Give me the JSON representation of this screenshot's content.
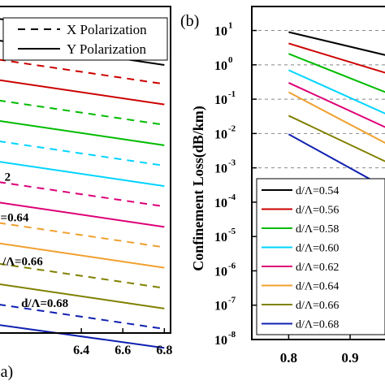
{
  "chart_data": [
    {
      "panel": "(a)",
      "type": "line",
      "title": "",
      "xlabel": "",
      "ylabel": "",
      "xlim": [
        6.0,
        6.83
      ],
      "ylim": [
        0,
        12
      ],
      "x_ticks": [
        6.4,
        6.6,
        6.8
      ],
      "x_tick_labels": [
        "6.4",
        "6.6",
        "6.8"
      ],
      "x": [
        6.0,
        6.8
      ],
      "legend": {
        "position": "top-right",
        "entries": [
          {
            "label": "X Polarization",
            "style": "dashed"
          },
          {
            "label": "Y Polarization",
            "style": "solid"
          }
        ]
      },
      "annotations": [
        {
          "text": "2",
          "x": 6.03,
          "y": 5.6
        },
        {
          "text": "=0.64",
          "x": 6.01,
          "y": 4.1
        },
        {
          "text": "/Λ=0.66",
          "x": 6.02,
          "y": 2.5
        },
        {
          "text": "d/Λ=0.68",
          "x": 6.11,
          "y": 0.95
        }
      ],
      "series": [
        {
          "color": "#000000",
          "style": "dashed",
          "values": [
            11.55,
            10.65
          ]
        },
        {
          "color": "#000000",
          "style": "solid",
          "values": [
            10.75,
            9.85
          ]
        },
        {
          "color": "#cc0000",
          "style": "dashed",
          "values": [
            10.05,
            9.15
          ]
        },
        {
          "color": "#cc0000",
          "style": "solid",
          "values": [
            9.3,
            8.4
          ]
        },
        {
          "color": "#00bb00",
          "style": "dashed",
          "values": [
            8.55,
            7.65
          ]
        },
        {
          "color": "#00bb00",
          "style": "solid",
          "values": [
            7.8,
            6.9
          ]
        },
        {
          "color": "#00d4ff",
          "style": "dashed",
          "values": [
            7.05,
            6.15
          ]
        },
        {
          "color": "#00d4ff",
          "style": "solid",
          "values": [
            6.3,
            5.4
          ]
        },
        {
          "color": "#dd0077",
          "style": "dashed",
          "values": [
            5.55,
            4.65
          ]
        },
        {
          "color": "#dd0077",
          "style": "solid",
          "values": [
            4.8,
            3.9
          ]
        },
        {
          "color": "#f0a030",
          "style": "dashed",
          "values": [
            4.05,
            3.15
          ]
        },
        {
          "color": "#f0a030",
          "style": "solid",
          "values": [
            3.3,
            2.4
          ]
        },
        {
          "color": "#808000",
          "style": "dashed",
          "values": [
            2.55,
            1.65
          ]
        },
        {
          "color": "#808000",
          "style": "solid",
          "values": [
            1.8,
            0.9
          ]
        },
        {
          "color": "#1020b0",
          "style": "dashed",
          "values": [
            1.05,
            0.15
          ]
        },
        {
          "color": "#1020b0",
          "style": "solid",
          "values": [
            0.3,
            -0.55
          ]
        }
      ]
    },
    {
      "panel": "(b)",
      "type": "line",
      "title": "",
      "xlabel": "",
      "ylabel": "Confinement Loss(dB/km)",
      "log_y": true,
      "xlim": [
        0.74,
        0.97
      ],
      "ylim": [
        1e-08,
        50
      ],
      "x_ticks": [
        0.8,
        0.9
      ],
      "x_tick_labels": [
        "0.8",
        "0.9"
      ],
      "y_tick_exponents": [
        1,
        0,
        -1,
        -2,
        -3,
        -4,
        -5,
        -6,
        -7,
        -8
      ],
      "y_tick_labels": [
        "10",
        "10",
        "10",
        "10",
        "10",
        "10",
        "10",
        "10",
        "10",
        "10"
      ],
      "grid": "horizontal dashed",
      "x": [
        0.8,
        0.97
      ],
      "legend": {
        "position": "bottom-left"
      },
      "series": [
        {
          "name": "d/Λ=0.54",
          "color": "#000000",
          "values": [
            9.0,
            1.7
          ]
        },
        {
          "name": "d/Λ=0.56",
          "color": "#cc0000",
          "values": [
            4.2,
            0.5
          ]
        },
        {
          "name": "d/Λ=0.58",
          "color": "#00bb00",
          "values": [
            2.1,
            0.13
          ]
        },
        {
          "name": "d/Λ=0.60",
          "color": "#00d4ff",
          "values": [
            0.7,
            0.03
          ]
        },
        {
          "name": "d/Λ=0.62",
          "color": "#dd0077",
          "values": [
            0.3,
            0.012
          ]
        },
        {
          "name": "d/Λ=0.64",
          "color": "#f0a030",
          "values": [
            0.16,
            0.004
          ]
        },
        {
          "name": "d/Λ=0.66",
          "color": "#808000",
          "values": [
            0.033,
            0.0012
          ]
        },
        {
          "name": "d/Λ=0.68",
          "color": "#1020b0",
          "values": [
            0.0095,
            0.0002
          ]
        }
      ]
    }
  ]
}
